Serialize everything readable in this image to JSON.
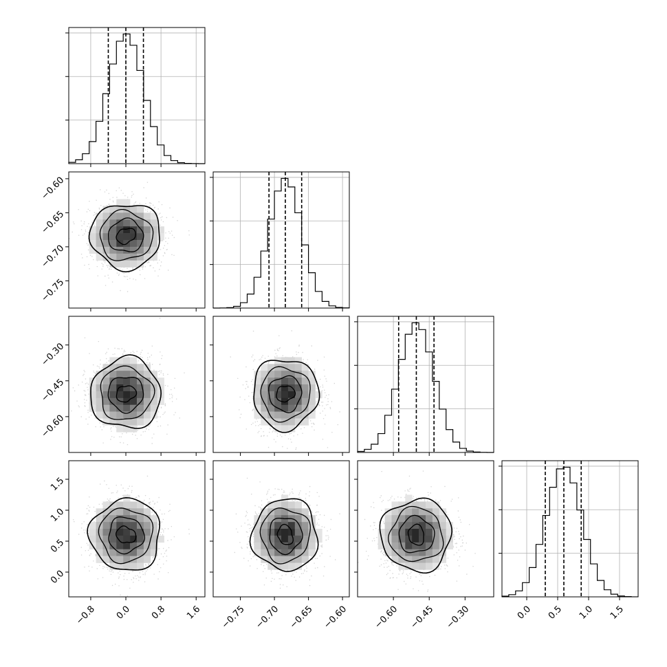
{
  "chart_data": {
    "type": "corner",
    "title": "",
    "grid": true,
    "params": [
      {
        "range": [
          -1.3,
          1.8
        ],
        "ticks": [
          -0.8,
          0.0,
          0.8,
          1.6
        ],
        "tick_labels": [
          "−0.8",
          "0.0",
          "0.8",
          "1.6"
        ],
        "quantiles": [
          -0.4,
          0.0,
          0.4
        ],
        "mean": 0.0,
        "sd": 0.4
      },
      {
        "range": [
          -0.79,
          -0.59
        ],
        "ticks": [
          -0.75,
          -0.7,
          -0.65,
          -0.6
        ],
        "tick_labels": [
          "−0.75",
          "−0.70",
          "−0.65",
          "−0.60"
        ],
        "quantiles": [
          -0.708,
          -0.684,
          -0.66
        ],
        "mean": -0.684,
        "sd": 0.024
      },
      {
        "range": [
          -0.75,
          -0.18
        ],
        "ticks": [
          -0.6,
          -0.45,
          -0.3
        ],
        "tick_labels": [
          "−0.60",
          "−0.45",
          "−0.30"
        ],
        "quantiles": [
          -0.578,
          -0.504,
          -0.43
        ],
        "mean": -0.504,
        "sd": 0.074
      },
      {
        "range": [
          -0.4,
          1.8
        ],
        "ticks": [
          0.0,
          0.5,
          1.0,
          1.5
        ],
        "tick_labels": [
          "0.0",
          "0.5",
          "1.0",
          "1.5"
        ],
        "quantiles": [
          0.3,
          0.6,
          0.88
        ],
        "mean": 0.6,
        "sd": 0.29
      }
    ],
    "histogram_bins": 20,
    "contour_levels": [
      0.5,
      1.0,
      1.5,
      2.0
    ],
    "colors": {
      "line": "#000000",
      "grid": "#b0b0b0",
      "points": "#7f7f7f"
    }
  }
}
